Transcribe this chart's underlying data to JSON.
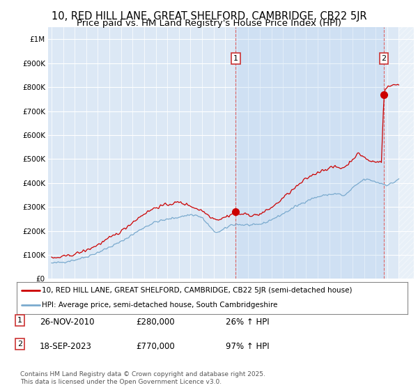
{
  "title": "10, RED HILL LANE, GREAT SHELFORD, CAMBRIDGE, CB22 5JR",
  "subtitle": "Price paid vs. HM Land Registry's House Price Index (HPI)",
  "title_fontsize": 10.5,
  "subtitle_fontsize": 9.5,
  "ytick_values": [
    0,
    100000,
    200000,
    300000,
    400000,
    500000,
    600000,
    700000,
    800000,
    900000,
    1000000
  ],
  "ylim": [
    0,
    1050000
  ],
  "xlim_start": 1994.7,
  "xlim_end": 2026.3,
  "background_color": "#dce8f5",
  "hatch_color": "#c8d8e8",
  "grid_color": "#ffffff",
  "red_color": "#cc0000",
  "blue_color": "#7aaace",
  "transaction1_x": 2010.91,
  "transaction1_y": 280000,
  "transaction2_x": 2023.72,
  "transaction2_y": 770000,
  "vline1_x": 2010.91,
  "vline2_x": 2023.72,
  "hatch_start": 2025.0,
  "legend_red_label": "10, RED HILL LANE, GREAT SHELFORD, CAMBRIDGE, CB22 5JR (semi-detached house)",
  "legend_blue_label": "HPI: Average price, semi-detached house, South Cambridgeshire",
  "note1_date": "26-NOV-2010",
  "note1_price": "£280,000",
  "note1_change": "26% ↑ HPI",
  "note2_date": "18-SEP-2023",
  "note2_price": "£770,000",
  "note2_change": "97% ↑ HPI",
  "footer": "Contains HM Land Registry data © Crown copyright and database right 2025.\nThis data is licensed under the Open Government Licence v3.0."
}
